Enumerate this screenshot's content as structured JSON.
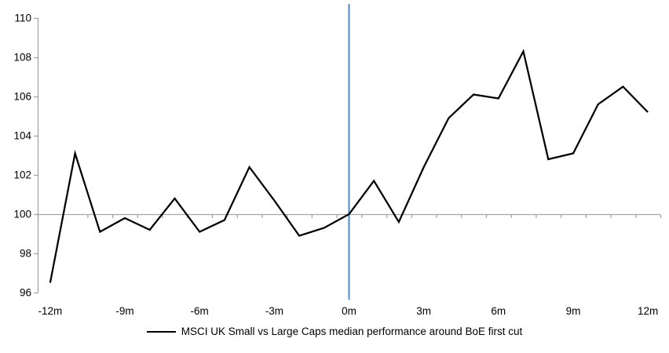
{
  "chart": {
    "legend": {
      "label": "MSCI UK Small vs Large Caps median performance around BoE first cut"
    },
    "colors": {
      "series": "#000000",
      "event_line": "#5089c8",
      "axis": "#a6a6a6",
      "background": "#ffffff",
      "text": "#000000"
    }
  },
  "chart_data": {
    "type": "line",
    "title": "",
    "xlabel": "",
    "ylabel": "",
    "x": [
      -12,
      -11,
      -10,
      -9,
      -8,
      -7,
      -6,
      -5,
      -4,
      -3,
      -2,
      -1,
      0,
      1,
      2,
      3,
      4,
      5,
      6,
      7,
      8,
      9,
      10,
      11,
      12
    ],
    "series": [
      {
        "name": "MSCI UK Small vs Large Caps median performance around BoE first cut",
        "values": [
          96.5,
          103.1,
          99.1,
          99.8,
          99.2,
          100.8,
          99.1,
          99.7,
          102.4,
          100.7,
          98.9,
          99.3,
          100.0,
          101.7,
          99.6,
          102.4,
          104.9,
          106.1,
          105.9,
          108.3,
          102.8,
          103.1,
          105.6,
          106.5,
          105.2
        ]
      }
    ],
    "ylim": [
      96,
      110
    ],
    "y_ticks": [
      96,
      98,
      100,
      102,
      104,
      106,
      108,
      110
    ],
    "x_tick_months": [
      -12,
      -9,
      -6,
      -3,
      0,
      3,
      6,
      9,
      12
    ],
    "x_tick_labels": [
      "-12m",
      "-9m",
      "-6m",
      "-3m",
      "0m",
      "3m",
      "6m",
      "9m",
      "12m"
    ],
    "baseline_y": 100,
    "event_line_x": 0,
    "grid": "off",
    "legend_position": "bottom-center"
  }
}
